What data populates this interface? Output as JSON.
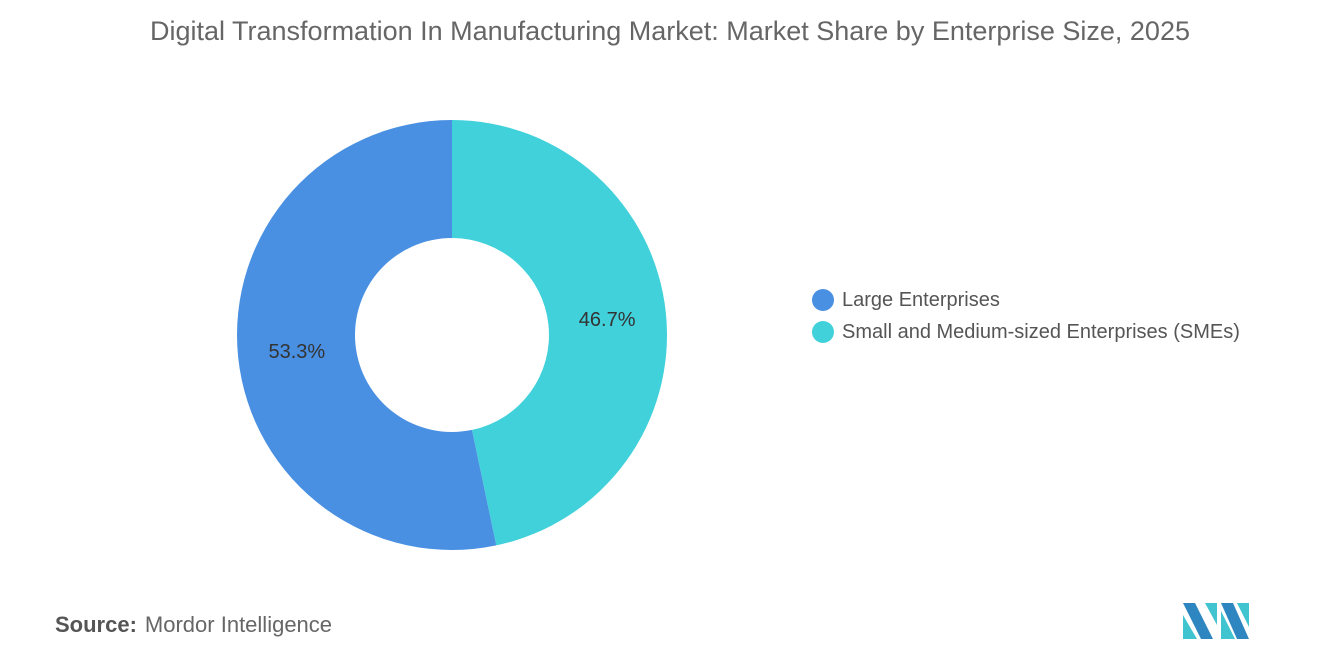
{
  "chart_data": {
    "type": "pie",
    "title": "Digital Transformation In Manufacturing Market: Market Share by Enterprise Size, 2025",
    "donut": true,
    "slices": [
      {
        "label": "Small and Medium-sized Enterprises (SMEs)",
        "value": 46.7,
        "display": "46.7%",
        "color": "#40D1DB"
      },
      {
        "label": "Large Enterprises",
        "value": 53.3,
        "display": "53.3%",
        "color": "#4A90E2"
      }
    ],
    "legend_order": [
      "Large Enterprises",
      "Small and Medium-sized Enterprises (SMEs)"
    ],
    "legend_position": "right"
  },
  "source": {
    "label": "Source:",
    "text": "Mordor Intelligence"
  },
  "logo": {
    "text": "Mordor Intelligence"
  }
}
